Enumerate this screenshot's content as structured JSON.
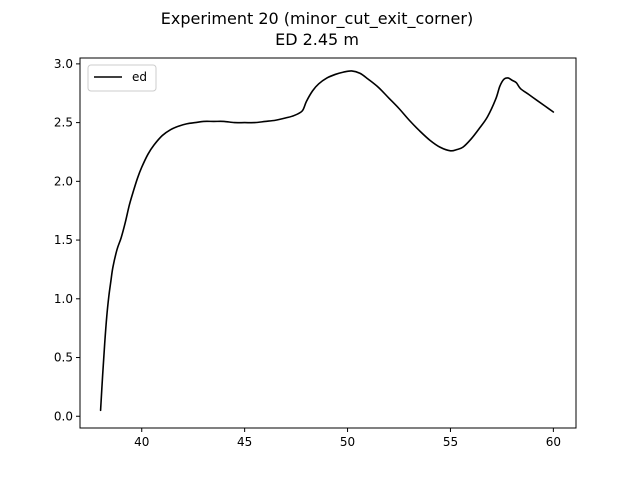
{
  "chart_data": {
    "type": "line",
    "title": "Experiment 20 (minor_cut_exit_corner)",
    "subtitle": "ED 2.45 m",
    "xlabel": "",
    "ylabel": "",
    "xlim": [
      37.0,
      61.1
    ],
    "ylim": [
      -0.1,
      3.05
    ],
    "x_ticks": [
      40,
      45,
      50,
      55,
      60
    ],
    "x_tick_labels": [
      "40",
      "45",
      "50",
      "55",
      "60"
    ],
    "y_ticks": [
      0.0,
      0.5,
      1.0,
      1.5,
      2.0,
      2.5,
      3.0
    ],
    "y_tick_labels": [
      "0.0",
      "0.5",
      "1.0",
      "1.5",
      "2.0",
      "2.5",
      "3.0"
    ],
    "grid": false,
    "legend_position": "top-left",
    "series": [
      {
        "name": "ed",
        "color": "#000000",
        "x": [
          38.0,
          38.1,
          38.2,
          38.3,
          38.4,
          38.5,
          38.6,
          38.8,
          39.0,
          39.2,
          39.4,
          39.6,
          39.8,
          40.0,
          40.3,
          40.6,
          41.0,
          41.4,
          41.8,
          42.2,
          42.6,
          43.0,
          43.5,
          44.0,
          44.5,
          45.0,
          45.5,
          46.0,
          46.5,
          47.0,
          47.4,
          47.8,
          48.0,
          48.3,
          48.6,
          49.0,
          49.4,
          49.8,
          50.2,
          50.6,
          51.0,
          51.5,
          52.0,
          52.5,
          53.0,
          53.5,
          54.0,
          54.5,
          55.0,
          55.3,
          55.6,
          56.0,
          56.4,
          56.8,
          57.2,
          57.4,
          57.6,
          57.8,
          58.0,
          58.2,
          58.4,
          58.8,
          59.2,
          59.6,
          60.0
        ],
        "y": [
          0.05,
          0.35,
          0.62,
          0.85,
          1.02,
          1.15,
          1.27,
          1.42,
          1.52,
          1.65,
          1.8,
          1.92,
          2.03,
          2.12,
          2.23,
          2.31,
          2.39,
          2.44,
          2.47,
          2.49,
          2.5,
          2.51,
          2.51,
          2.51,
          2.5,
          2.5,
          2.5,
          2.51,
          2.52,
          2.54,
          2.56,
          2.6,
          2.68,
          2.77,
          2.83,
          2.88,
          2.91,
          2.93,
          2.94,
          2.92,
          2.87,
          2.8,
          2.71,
          2.62,
          2.52,
          2.43,
          2.35,
          2.29,
          2.26,
          2.27,
          2.29,
          2.36,
          2.45,
          2.55,
          2.7,
          2.81,
          2.87,
          2.88,
          2.86,
          2.84,
          2.79,
          2.74,
          2.69,
          2.64,
          2.59
        ]
      }
    ]
  }
}
